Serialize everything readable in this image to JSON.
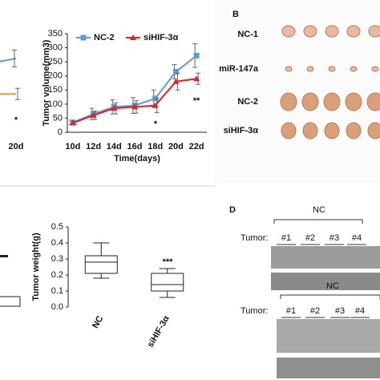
{
  "chart_data": [
    {
      "type": "line",
      "categories": [
        null,
        "20d"
      ],
      "series": [
        {
          "name": null,
          "color": "#5b9bd5",
          "values": [
            230,
            262
          ],
          "errors": [
            null,
            30
          ]
        },
        {
          "name": null,
          "color": "#ed9a3c",
          "values": [
            136,
            136
          ],
          "errors": [
            null,
            20
          ]
        }
      ],
      "ylim": [
        0,
        350
      ],
      "annotations": [
        "*"
      ]
    },
    {
      "type": "line",
      "xlabel": "Time(days)",
      "ylabel": "Tumor volume(mm3)",
      "categories": [
        "10d",
        "12d",
        "14d",
        "16d",
        "18d",
        "20d",
        "22d"
      ],
      "series": [
        {
          "name": "NC-2",
          "color": "#5b9bd5",
          "marker": "square",
          "values": [
            35,
            65,
            90,
            95,
            120,
            215,
            272
          ],
          "errors": [
            8,
            20,
            25,
            28,
            30,
            25,
            42
          ]
        },
        {
          "name": "siHIF-3α",
          "color": "#e0202a",
          "marker": "triangle",
          "values": [
            33,
            60,
            85,
            90,
            95,
            180,
            190
          ],
          "errors": [
            6,
            15,
            20,
            22,
            25,
            30,
            20
          ]
        }
      ],
      "ylim": [
        0,
        350
      ],
      "yticks": [
        0,
        50,
        100,
        150,
        200,
        250,
        300,
        350
      ],
      "annotations": [
        "*",
        "**"
      ]
    },
    {
      "type": "box",
      "ylabel": "Tumor weight(g)",
      "categories": [
        "NC",
        "siHIF-3α"
      ],
      "boxes": [
        {
          "min": 0.18,
          "q1": 0.21,
          "median": 0.28,
          "q3": 0.32,
          "max": 0.4
        },
        {
          "min": 0.06,
          "q1": 0.1,
          "median": 0.14,
          "q3": 0.21,
          "max": 0.24
        }
      ],
      "ylim": [
        0,
        0.5
      ],
      "yticks": [
        {
          "value": 0,
          "label": "0.0"
        },
        0.1,
        0.2,
        0.3,
        0.4,
        0.5
      ],
      "annotations": [
        "***"
      ]
    }
  ],
  "panel_b": {
    "label": "B",
    "rows": [
      "NC-1",
      "miR-147a",
      "NC-2",
      "siHIF-3α"
    ]
  },
  "panel_d": {
    "label": "D",
    "blots": [
      {
        "group": "NC",
        "row_label": "Tumor:",
        "lanes": [
          "#1",
          "#2",
          "#3",
          "#4"
        ]
      },
      {
        "group": "NC",
        "row_label": "Tumor:",
        "lanes": [
          "#1",
          "#2",
          "#3",
          "#4"
        ]
      }
    ]
  }
}
